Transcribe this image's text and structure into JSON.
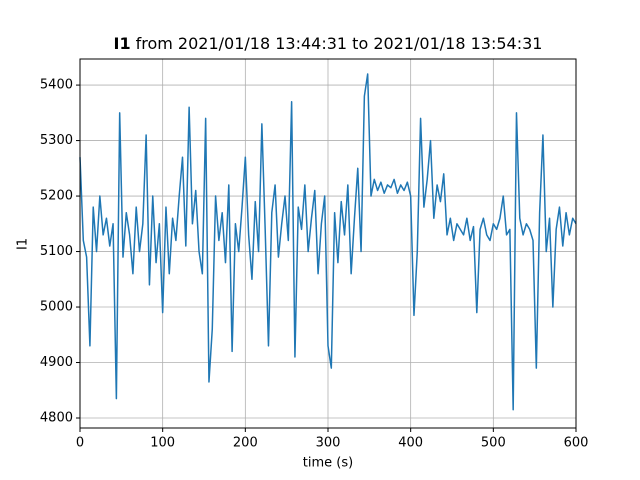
{
  "chart_data": {
    "type": "line",
    "title_bold": "I1",
    "title": "from 2021/01/18 13:44:31 to 2021/01/18 13:54:31",
    "xlabel": "time (s)",
    "ylabel": "I1",
    "color": "#1f77b4",
    "grid": true,
    "xlim": [
      0,
      600
    ],
    "ylim": [
      4782,
      5447
    ],
    "xticks": [
      0,
      100,
      200,
      300,
      400,
      500,
      600
    ],
    "yticks": [
      4800,
      4900,
      5000,
      5100,
      5200,
      5300,
      5400
    ],
    "x": [
      0,
      4,
      8,
      12,
      16,
      20,
      24,
      28,
      32,
      36,
      40,
      44,
      48,
      52,
      56,
      60,
      64,
      68,
      72,
      76,
      80,
      84,
      88,
      92,
      96,
      100,
      104,
      108,
      112,
      116,
      120,
      124,
      128,
      132,
      136,
      140,
      144,
      148,
      152,
      156,
      160,
      164,
      168,
      172,
      176,
      180,
      184,
      188,
      192,
      196,
      200,
      204,
      208,
      212,
      216,
      220,
      224,
      228,
      232,
      236,
      240,
      244,
      248,
      252,
      256,
      260,
      264,
      268,
      272,
      276,
      280,
      284,
      288,
      292,
      296,
      300,
      304,
      308,
      312,
      316,
      320,
      324,
      328,
      332,
      336,
      340,
      344,
      348,
      352,
      356,
      360,
      364,
      368,
      372,
      376,
      380,
      384,
      388,
      392,
      396,
      400,
      404,
      408,
      412,
      416,
      420,
      424,
      428,
      432,
      436,
      440,
      444,
      448,
      452,
      456,
      460,
      464,
      468,
      472,
      476,
      480,
      484,
      488,
      492,
      496,
      500,
      504,
      508,
      512,
      516,
      520,
      524,
      528,
      532,
      536,
      540,
      544,
      548,
      552,
      556,
      560,
      564,
      568,
      572,
      576,
      580,
      584,
      588,
      592,
      596,
      600
    ],
    "values": [
      5270,
      5120,
      5090,
      4930,
      5180,
      5100,
      5200,
      5130,
      5160,
      5110,
      5150,
      4835,
      5350,
      5090,
      5170,
      5130,
      5060,
      5180,
      5100,
      5150,
      5310,
      5040,
      5200,
      5080,
      5150,
      4990,
      5180,
      5060,
      5160,
      5120,
      5200,
      5270,
      5110,
      5360,
      5150,
      5210,
      5100,
      5060,
      5340,
      4865,
      4960,
      5200,
      5120,
      5170,
      5080,
      5220,
      4920,
      5150,
      5100,
      5180,
      5270,
      5130,
      5050,
      5190,
      5100,
      5330,
      5140,
      4930,
      5170,
      5220,
      5090,
      5150,
      5200,
      5120,
      5370,
      4910,
      5180,
      5140,
      5220,
      5100,
      5160,
      5210,
      5060,
      5150,
      5200,
      4930,
      4890,
      5170,
      5080,
      5190,
      5130,
      5220,
      5060,
      5160,
      5250,
      5100,
      5380,
      5420,
      5200,
      5230,
      5210,
      5225,
      5205,
      5220,
      5215,
      5230,
      5205,
      5220,
      5210,
      5225,
      5200,
      4985,
      5100,
      5340,
      5180,
      5230,
      5300,
      5160,
      5220,
      5190,
      5240,
      5130,
      5160,
      5120,
      5150,
      5140,
      5130,
      5160,
      5120,
      5145,
      4990,
      5140,
      5160,
      5130,
      5120,
      5150,
      5140,
      5160,
      5200,
      5130,
      5140,
      4815,
      5350,
      5160,
      5130,
      5150,
      5140,
      5120,
      4890,
      5170,
      5310,
      5100,
      5160,
      5000,
      5140,
      5180,
      5110,
      5170,
      5130,
      5160,
      5150
    ]
  }
}
